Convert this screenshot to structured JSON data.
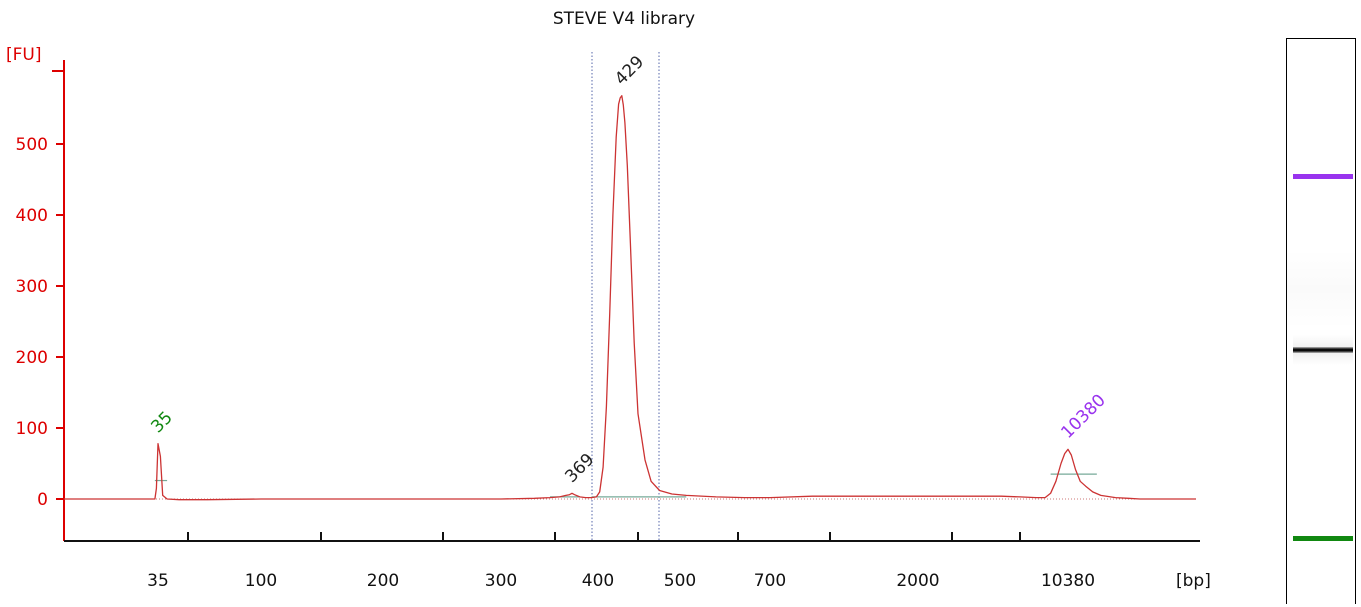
{
  "colors": {
    "axis": "#dd0000",
    "trace": "#cc3333",
    "lower_marker": "#118811",
    "upper_marker": "#9933ee",
    "peak_label": "#222222",
    "dotted_line": "#5566aa",
    "baseline": "#77aa99"
  },
  "chart_data": {
    "type": "line",
    "title": "STEVE V4 library",
    "ylabel": "[FU]",
    "xlabel": "[bp]",
    "ylim": [
      -60,
      620
    ],
    "y_ticks": [
      0,
      100,
      200,
      300,
      400,
      500
    ],
    "x_ticks": [
      "35",
      "100",
      "200",
      "300",
      "400",
      "500",
      "700",
      "2000",
      "10380"
    ],
    "x_scale": "nonlinear (electrophoresis size ladder)",
    "peaks": [
      {
        "label": "35",
        "size_bp": 35,
        "height_fu": 78,
        "role": "lower marker"
      },
      {
        "label": "369",
        "size_bp": 369,
        "height_fu": 8,
        "role": "sample"
      },
      {
        "label": "429",
        "size_bp": 429,
        "height_fu": 568,
        "role": "sample"
      },
      {
        "label": "10380",
        "size_bp": 10380,
        "height_fu": 70,
        "role": "upper marker"
      }
    ],
    "region_markers": "two dotted vertical lines bracketing the 429 bp peak",
    "series": [
      {
        "x_bp": [
          25,
          30,
          33,
          34,
          35,
          36,
          37,
          39,
          45,
          60,
          100,
          150,
          200,
          250,
          300,
          330,
          345,
          355,
          362,
          366,
          369,
          372,
          378,
          385,
          392,
          398,
          402,
          406,
          410,
          414,
          418,
          422,
          425,
          427,
          429,
          431,
          433,
          436,
          440,
          445,
          450,
          458,
          465,
          475,
          490,
          510,
          560,
          620,
          700,
          900,
          1100,
          1500,
          2000,
          3000,
          4000,
          5000,
          6000,
          7000,
          8000,
          8600,
          9000,
          9400,
          9800,
          10100,
          10380,
          10700,
          11100,
          11600,
          12200,
          13000,
          14000,
          16000,
          18000,
          20000,
          22000,
          25000
        ],
        "y_fu": [
          0,
          0,
          0,
          15,
          78,
          60,
          5,
          0,
          -1,
          -1,
          0,
          0,
          0,
          0,
          0,
          1,
          2,
          3,
          5,
          6,
          8,
          6,
          3,
          2,
          2,
          3,
          10,
          45,
          130,
          260,
          400,
          510,
          556,
          565,
          568,
          555,
          530,
          470,
          360,
          220,
          120,
          55,
          25,
          12,
          7,
          5,
          3,
          2,
          2,
          4,
          4,
          4,
          4,
          4,
          4,
          4,
          4,
          3,
          2,
          2,
          8,
          25,
          50,
          64,
          70,
          62,
          42,
          25,
          18,
          10,
          5,
          2,
          1,
          0,
          0,
          0
        ]
      }
    ],
    "baselines": [
      {
        "from_bp": 33,
        "to_bp": 39,
        "y_fu": 26
      },
      {
        "from_bp": 345,
        "to_bp": 378,
        "y_fu": 3
      },
      {
        "from_bp": 392,
        "to_bp": 510,
        "y_fu": 3
      },
      {
        "from_bp": 9000,
        "to_bp": 13500,
        "y_fu": 35
      }
    ],
    "gel_bands": [
      {
        "name": "upper marker",
        "color": "#9933ee"
      },
      {
        "name": "sample",
        "color": "#000000"
      },
      {
        "name": "lower marker",
        "color": "#118811"
      }
    ]
  }
}
